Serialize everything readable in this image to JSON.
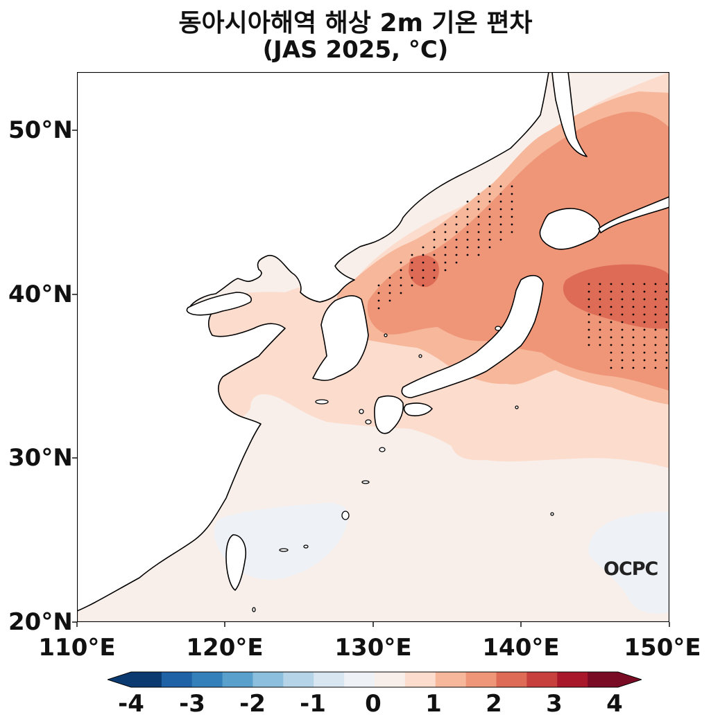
{
  "title": {
    "line1": "동아시아해역 해상 2m 기온 편차",
    "line2": "(JAS 2025, °C)"
  },
  "map": {
    "lon_ticks": [
      "110°E",
      "120°E",
      "130°E",
      "140°E",
      "150°E"
    ],
    "lat_ticks": [
      "50°N",
      "40°N",
      "30°N",
      "20°N"
    ],
    "lon_range": [
      110,
      150
    ],
    "lat_range": [
      20,
      53.5
    ],
    "stippling": "significant areas marked with dots",
    "watermark": "OCPC"
  },
  "colorbar": {
    "tick_labels": [
      "-4",
      "-3",
      "-2",
      "-1",
      "0",
      "1",
      "2",
      "3",
      "4"
    ],
    "levels": [
      -4,
      -3.5,
      -3,
      -2.5,
      -2,
      -1.5,
      -1,
      -0.5,
      0,
      0.5,
      1,
      1.5,
      2,
      2.5,
      3,
      3.5,
      4
    ],
    "colors": [
      "#0a3a70",
      "#1f62a6",
      "#3380bb",
      "#5aa0cc",
      "#8cbfdd",
      "#b5d4e8",
      "#d8e6f1",
      "#eef2f6",
      "#f8efea",
      "#fcdccd",
      "#f7b79b",
      "#ee9677",
      "#dd6b55",
      "#c8403d",
      "#a8182a",
      "#7a0b25"
    ],
    "extend": "both"
  }
}
